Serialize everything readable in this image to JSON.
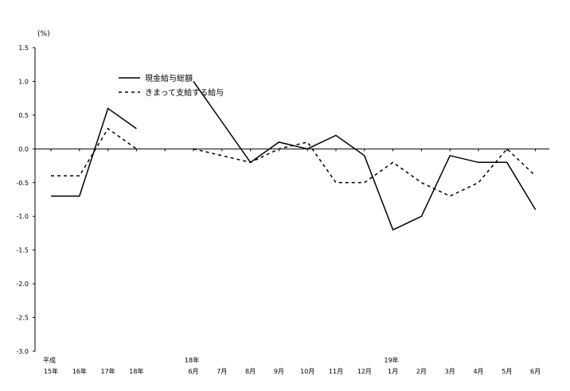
{
  "chart_data": {
    "type": "line",
    "unit_label": "(%)",
    "ylim": [
      -3.0,
      1.5
    ],
    "y_ticks": [
      1.5,
      1.0,
      0.5,
      0.0,
      -0.5,
      -1.0,
      -1.5,
      -2.0,
      -2.5,
      -3.0
    ],
    "y_tick_labels": [
      "1.5",
      "1.0",
      "0.5",
      "0.0",
      "-0.5",
      "-1.0",
      "-1.5",
      "-2.0",
      "-2.5",
      "-3.0"
    ],
    "categories": [
      "平成15年",
      "16年",
      "17年",
      "18年",
      "",
      "18年6月",
      "7月",
      "8月",
      "9月",
      "10月",
      "11月",
      "12月",
      "19年1月",
      "2月",
      "3月",
      "4月",
      "5月",
      "6月"
    ],
    "x_tick_labels": [
      {
        "top": "平成",
        "bottom": "15年"
      },
      {
        "top": "",
        "bottom": "16年"
      },
      {
        "top": "",
        "bottom": "17年"
      },
      {
        "top": "",
        "bottom": "18年"
      },
      {
        "top": "",
        "bottom": ""
      },
      {
        "top": "18年",
        "bottom": "6月"
      },
      {
        "top": "",
        "bottom": "7月"
      },
      {
        "top": "",
        "bottom": "8月"
      },
      {
        "top": "",
        "bottom": "9月"
      },
      {
        "top": "",
        "bottom": "10月"
      },
      {
        "top": "",
        "bottom": "11月"
      },
      {
        "top": "",
        "bottom": "12月"
      },
      {
        "top": "19年",
        "bottom": "1月"
      },
      {
        "top": "",
        "bottom": "2月"
      },
      {
        "top": "",
        "bottom": "3月"
      },
      {
        "top": "",
        "bottom": "4月"
      },
      {
        "top": "",
        "bottom": "5月"
      },
      {
        "top": "",
        "bottom": "6月"
      }
    ],
    "series": [
      {
        "name": "現金給与総額",
        "style": "solid",
        "color": "#000000",
        "values": [
          -0.7,
          -0.7,
          0.6,
          0.3,
          null,
          1.0,
          0.4,
          -0.2,
          0.1,
          0.0,
          0.2,
          -0.1,
          -1.2,
          -1.0,
          -0.1,
          -0.2,
          -0.2,
          -0.9
        ]
      },
      {
        "name": "きまって支給する給与",
        "style": "dashed",
        "color": "#000000",
        "values": [
          -0.4,
          -0.4,
          0.3,
          0.0,
          null,
          0.0,
          -0.1,
          -0.2,
          0.0,
          0.1,
          -0.5,
          -0.5,
          -0.2,
          -0.5,
          -0.7,
          -0.5,
          0.0,
          -0.4
        ]
      }
    ],
    "legend_position": "top-left",
    "grid": false
  }
}
